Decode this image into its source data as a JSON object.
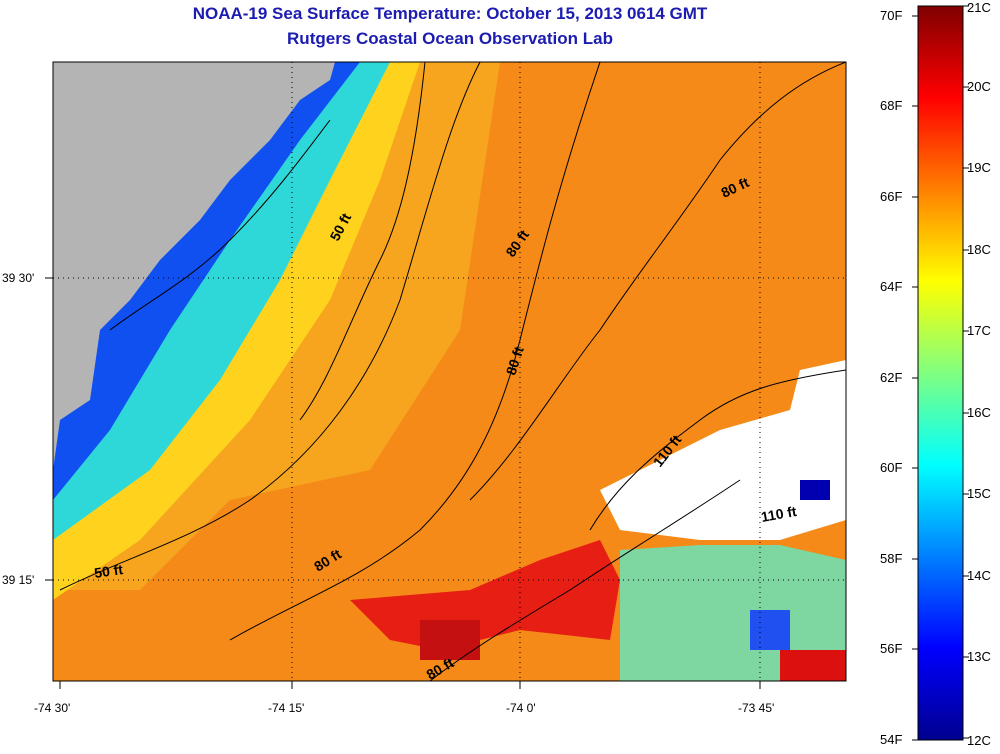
{
  "header": {
    "title": "NOAA-19 Sea Surface Temperature:  October 15, 2013 0614 GMT",
    "subtitle": "Rutgers Coastal Ocean Observation Lab"
  },
  "map": {
    "x_ticks": [
      "-74 30'",
      "-74 15'",
      "-74 0'",
      "-73 45'"
    ],
    "y_ticks": [
      "39 30'",
      "39 15'"
    ],
    "contour_labels": [
      "50 ft",
      "50 ft",
      "80 ft",
      "80 ft",
      "80 ft",
      "80 ft",
      "80 ft",
      "110 ft",
      "110 ft"
    ],
    "colors": {
      "land": "#b4b4b4",
      "no_data": "#ffffff",
      "contour": "#000000"
    }
  },
  "colorbar": {
    "fahrenheit": [
      "70F",
      "68F",
      "66F",
      "64F",
      "62F",
      "60F",
      "58F",
      "56F",
      "54F"
    ],
    "celsius": [
      "21C",
      "20C",
      "19C",
      "18C",
      "17C",
      "16C",
      "15C",
      "14C",
      "13C",
      "12C"
    ],
    "range_c": [
      12,
      21
    ],
    "colormap": "jet"
  }
}
